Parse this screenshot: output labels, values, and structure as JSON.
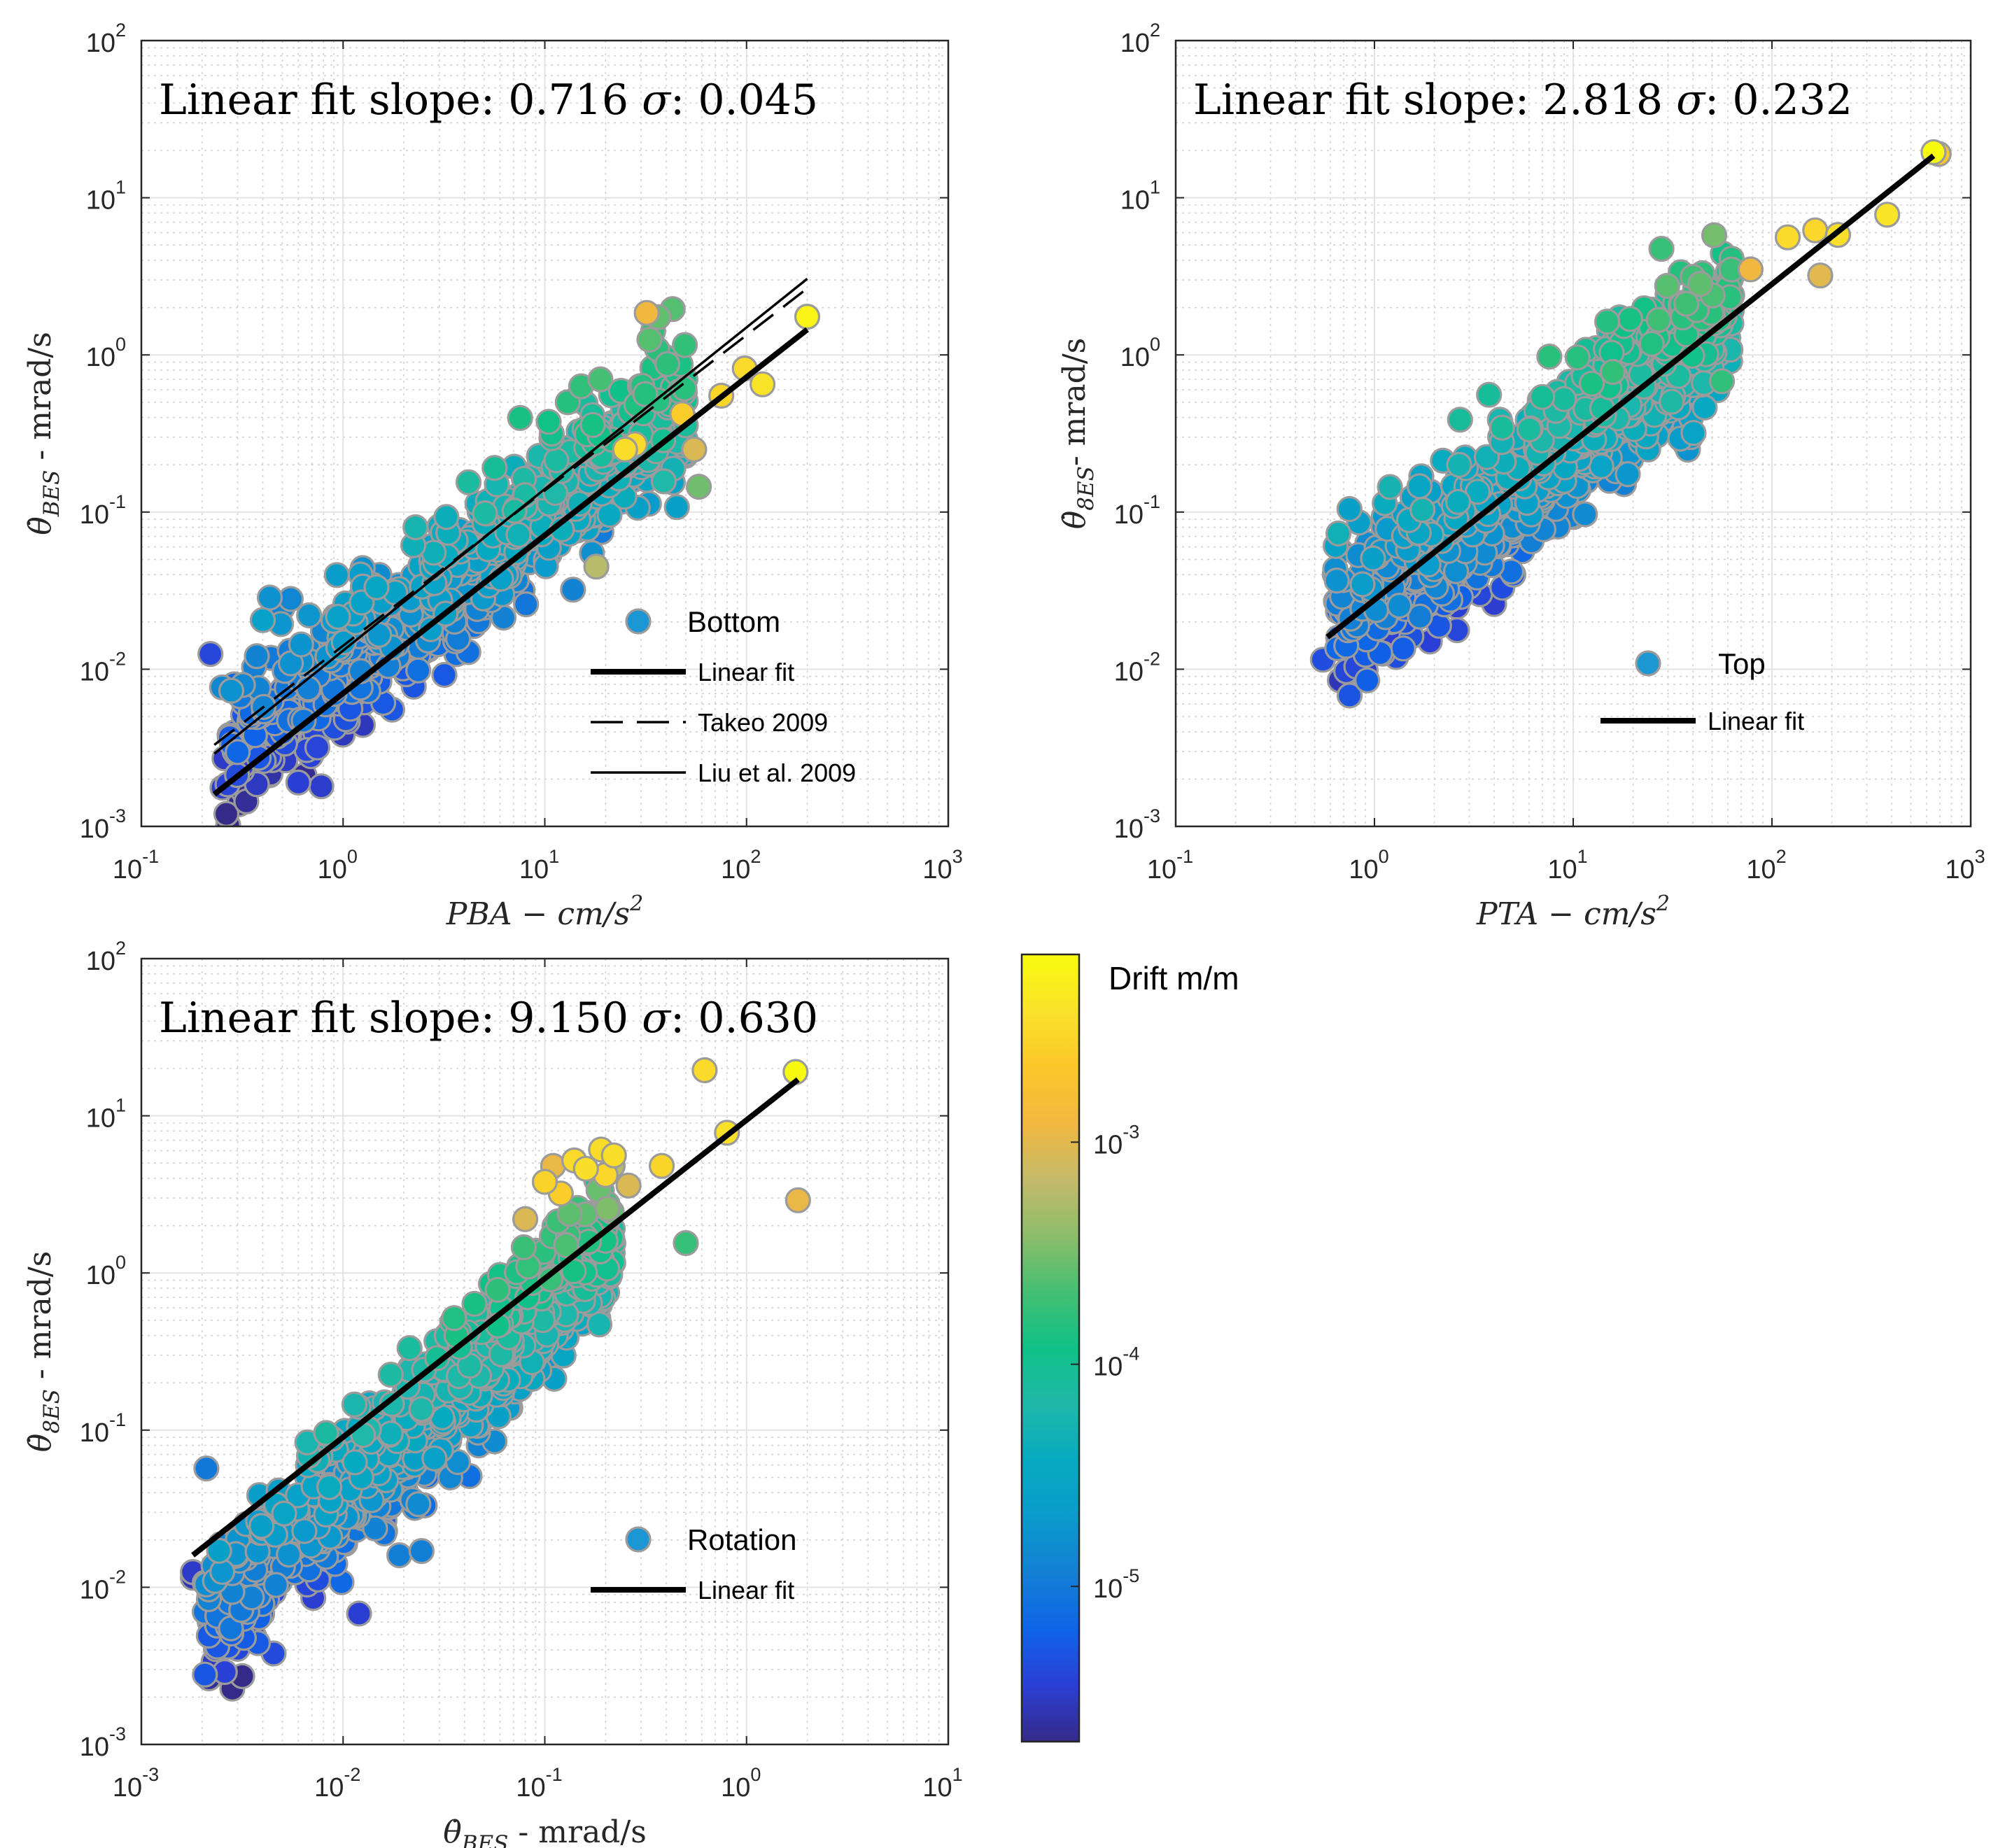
{
  "chart_data": [
    {
      "type": "scatter",
      "id": "bottom",
      "title": "Linear fit slope: 0.716 σ: 0.045",
      "xlabel": "PBA − cm/s²",
      "ylabel": "θ̇_BES - mrad/s",
      "xscale": "log",
      "yscale": "log",
      "xlim": [
        0.1,
        1000
      ],
      "ylim": [
        0.001,
        100
      ],
      "xticks": [
        {
          "v": 0.1,
          "e": "-1"
        },
        {
          "v": 1,
          "e": "0"
        },
        {
          "v": 10,
          "e": "1"
        },
        {
          "v": 100,
          "e": "2"
        },
        {
          "v": 1000,
          "e": "3"
        }
      ],
      "yticks": [
        {
          "v": 0.001,
          "e": "-3"
        },
        {
          "v": 0.01,
          "e": "-2"
        },
        {
          "v": 0.1,
          "e": "-1"
        },
        {
          "v": 1,
          "e": "0"
        },
        {
          "v": 10,
          "e": "1"
        },
        {
          "v": 100,
          "e": "2"
        }
      ],
      "tick_base": "10",
      "grid": true,
      "legend_position": "lower-right",
      "legend": {
        "marker_label": "Bottom",
        "lines": [
          {
            "label": "Linear fit",
            "style": "solid-thick"
          },
          {
            "label": "Takeo 2009",
            "style": "dashed"
          },
          {
            "label": "Liu et al. 2009",
            "style": "solid-thin"
          }
        ]
      },
      "lines": [
        {
          "name": "Linear fit",
          "style": "solid-thick",
          "x": [
            0.23,
            200
          ],
          "y": [
            0.0016,
            1.45
          ]
        },
        {
          "name": "Takeo 2009",
          "style": "dashed",
          "x": [
            0.23,
            200
          ],
          "y": [
            0.0033,
            2.65
          ]
        },
        {
          "name": "Liu et al. 2009",
          "style": "solid-thin",
          "x": [
            0.23,
            200
          ],
          "y": [
            0.0029,
            3.05
          ]
        }
      ],
      "cloud": {
        "xmin_log": -0.6,
        "xmax_log": 1.7,
        "slope": 0.98,
        "intercept": -1.97,
        "spread": 0.22,
        "count": 900,
        "seed": 11,
        "drift_center": -4.75,
        "drift_per_decade": 0.55
      },
      "points": [
        {
          "x": 0.22,
          "y": 0.0125,
          "drift": 4e-06
        },
        {
          "x": 0.55,
          "y": 0.028,
          "drift": 1.3e-05
        },
        {
          "x": 0.5,
          "y": 0.0245,
          "drift": 1.2e-05
        },
        {
          "x": 1.25,
          "y": 0.044,
          "drift": 1.6e-05
        },
        {
          "x": 0.6,
          "y": 0.0019,
          "drift": 3.5e-06
        },
        {
          "x": 0.78,
          "y": 0.0018,
          "drift": 3.3e-06
        },
        {
          "x": 13,
          "y": 0.5,
          "drift": 0.00015
        },
        {
          "x": 32,
          "y": 1.85,
          "drift": 0.0012
        },
        {
          "x": 18,
          "y": 0.045,
          "drift": 0.0006
        },
        {
          "x": 55,
          "y": 0.25,
          "drift": 0.0009
        },
        {
          "x": 48,
          "y": 0.42,
          "drift": 0.0025
        },
        {
          "x": 75,
          "y": 0.55,
          "drift": 0.003
        },
        {
          "x": 98,
          "y": 0.82,
          "drift": 0.0033
        },
        {
          "x": 120,
          "y": 0.65,
          "drift": 0.004
        },
        {
          "x": 200,
          "y": 1.75,
          "drift": 0.006
        },
        {
          "x": 58,
          "y": 0.145,
          "drift": 0.0003
        },
        {
          "x": 25,
          "y": 0.25,
          "drift": 0.0035
        },
        {
          "x": 28,
          "y": 0.27,
          "drift": 0.0032
        }
      ]
    },
    {
      "type": "scatter",
      "id": "top",
      "title": "Linear fit slope: 2.818 σ: 0.232",
      "xlabel": "PTA − cm/s²",
      "ylabel": "θ̇_8ES- mrad/s",
      "xscale": "log",
      "yscale": "log",
      "xlim": [
        0.1,
        1000
      ],
      "ylim": [
        0.001,
        100
      ],
      "xticks": [
        {
          "v": 0.1,
          "e": "-1"
        },
        {
          "v": 1,
          "e": "0"
        },
        {
          "v": 10,
          "e": "1"
        },
        {
          "v": 100,
          "e": "2"
        },
        {
          "v": 1000,
          "e": "3"
        }
      ],
      "yticks": [
        {
          "v": 0.001,
          "e": "-3"
        },
        {
          "v": 0.01,
          "e": "-2"
        },
        {
          "v": 0.1,
          "e": "-1"
        },
        {
          "v": 1,
          "e": "0"
        },
        {
          "v": 10,
          "e": "1"
        },
        {
          "v": 100,
          "e": "2"
        }
      ],
      "tick_base": "10",
      "grid": true,
      "legend_position": "lower-center",
      "legend": {
        "marker_label": "Top",
        "lines": [
          {
            "label": "Linear fit",
            "style": "solid-thick"
          }
        ]
      },
      "lines": [
        {
          "name": "Linear fit",
          "style": "solid-thick",
          "x": [
            0.58,
            650
          ],
          "y": [
            0.016,
            18.5
          ]
        }
      ],
      "cloud": {
        "xmin_log": -0.2,
        "xmax_log": 1.8,
        "slope": 1.0,
        "intercept": -1.52,
        "spread": 0.22,
        "count": 1100,
        "seed": 23,
        "drift_center": -4.6,
        "drift_per_decade": 0.55
      },
      "points": [
        {
          "x": 0.55,
          "y": 0.0115,
          "drift": 4.5e-06
        },
        {
          "x": 0.75,
          "y": 0.0068,
          "drift": 5e-06
        },
        {
          "x": 0.92,
          "y": 0.0085,
          "drift": 6e-06
        },
        {
          "x": 56,
          "y": 0.68,
          "drift": 0.00017
        },
        {
          "x": 78,
          "y": 3.5,
          "drift": 0.0012
        },
        {
          "x": 120,
          "y": 5.6,
          "drift": 0.0033
        },
        {
          "x": 165,
          "y": 6.2,
          "drift": 0.0031
        },
        {
          "x": 175,
          "y": 3.2,
          "drift": 0.001
        },
        {
          "x": 215,
          "y": 5.8,
          "drift": 0.0036
        },
        {
          "x": 380,
          "y": 7.8,
          "drift": 0.0041
        },
        {
          "x": 650,
          "y": 19.5,
          "drift": 0.007
        },
        {
          "x": 690,
          "y": 19.0,
          "drift": 0.0022
        },
        {
          "x": 2.6,
          "y": 0.025,
          "drift": 3.5e-06
        },
        {
          "x": 3.4,
          "y": 0.03,
          "drift": 4e-06
        },
        {
          "x": 4.0,
          "y": 0.026,
          "drift": 3.4e-06
        },
        {
          "x": 4.4,
          "y": 0.033,
          "drift": 4.5e-06
        },
        {
          "x": 5.0,
          "y": 0.04,
          "drift": 5.5e-06
        },
        {
          "x": 7.5,
          "y": 0.08,
          "drift": 8e-06
        },
        {
          "x": 1.9,
          "y": 0.015,
          "drift": 3.6e-06
        }
      ]
    },
    {
      "type": "scatter",
      "id": "rotation",
      "title": "Linear fit slope: 9.150 σ: 0.630",
      "xlabel": "θ̇_BES - mrad/s",
      "ylabel": "θ̇_8ES - mrad/s",
      "xscale": "log",
      "yscale": "log",
      "xlim": [
        0.001,
        10
      ],
      "ylim": [
        0.001,
        100
      ],
      "xticks": [
        {
          "v": 0.001,
          "e": "-3"
        },
        {
          "v": 0.01,
          "e": "-2"
        },
        {
          "v": 0.1,
          "e": "-1"
        },
        {
          "v": 1,
          "e": "0"
        },
        {
          "v": 10,
          "e": "1"
        }
      ],
      "yticks": [
        {
          "v": 0.001,
          "e": "-3"
        },
        {
          "v": 0.01,
          "e": "-2"
        },
        {
          "v": 0.1,
          "e": "-1"
        },
        {
          "v": 1,
          "e": "0"
        },
        {
          "v": 10,
          "e": "1"
        },
        {
          "v": 100,
          "e": "2"
        }
      ],
      "tick_base": "10",
      "grid": true,
      "legend_position": "lower-right",
      "legend": {
        "marker_label": "Rotation",
        "lines": [
          {
            "label": "Linear fit",
            "style": "solid-thick"
          }
        ]
      },
      "lines": [
        {
          "name": "Linear fit",
          "style": "solid-thick",
          "x": [
            0.0018,
            1.8
          ],
          "y": [
            0.016,
            17
          ]
        }
      ],
      "cloud": {
        "xmin_log": -2.7,
        "xmax_log": -0.65,
        "slope": 1.2,
        "intercept": 1.0,
        "spread": 0.22,
        "count": 1000,
        "seed": 37,
        "drift_center": -4.6,
        "drift_per_decade": 0.55
      },
      "points": [
        {
          "x": 0.0018,
          "y": 0.0115,
          "drift": 2.8e-06
        },
        {
          "x": 0.0018,
          "y": 0.0125,
          "drift": 3.2e-06
        },
        {
          "x": 0.0021,
          "y": 0.057,
          "drift": 1e-05
        },
        {
          "x": 0.0025,
          "y": 0.0085,
          "drift": 3.5e-06
        },
        {
          "x": 0.0027,
          "y": 0.0095,
          "drift": 5e-06
        },
        {
          "x": 0.0075,
          "y": 0.0112,
          "drift": 4.5e-06
        },
        {
          "x": 0.012,
          "y": 0.0068,
          "drift": 3.5e-06
        },
        {
          "x": 0.016,
          "y": 0.022,
          "drift": 9e-06
        },
        {
          "x": 0.019,
          "y": 0.016,
          "drift": 1.1e-05
        },
        {
          "x": 0.022,
          "y": 0.036,
          "drift": 1.2e-05
        },
        {
          "x": 0.0245,
          "y": 0.017,
          "drift": 1.1e-05
        },
        {
          "x": 0.034,
          "y": 0.05,
          "drift": 1.3e-05
        },
        {
          "x": 0.047,
          "y": 0.08,
          "drift": 1.2e-05
        },
        {
          "x": 0.019,
          "y": 0.1,
          "drift": 9e-06
        },
        {
          "x": 0.62,
          "y": 19.5,
          "drift": 0.0033
        },
        {
          "x": 1.75,
          "y": 19.0,
          "drift": 0.007
        },
        {
          "x": 1.8,
          "y": 2.9,
          "drift": 0.0011
        },
        {
          "x": 0.8,
          "y": 7.8,
          "drift": 0.0038
        },
        {
          "x": 0.5,
          "y": 1.55,
          "drift": 0.00018
        },
        {
          "x": 0.38,
          "y": 4.8,
          "drift": 0.003
        },
        {
          "x": 0.1,
          "y": 3.8,
          "drift": 0.0028
        },
        {
          "x": 0.11,
          "y": 4.8,
          "drift": 0.0011
        },
        {
          "x": 0.14,
          "y": 5.2,
          "drift": 0.0033
        },
        {
          "x": 0.16,
          "y": 4.6,
          "drift": 0.0036
        },
        {
          "x": 0.19,
          "y": 6.1,
          "drift": 0.0034
        },
        {
          "x": 0.22,
          "y": 5.6,
          "drift": 0.0037
        },
        {
          "x": 0.26,
          "y": 3.6,
          "drift": 0.0009
        },
        {
          "x": 0.12,
          "y": 3.2,
          "drift": 0.0025
        },
        {
          "x": 0.2,
          "y": 4.2,
          "drift": 0.0031
        },
        {
          "x": 0.08,
          "y": 2.2,
          "drift": 0.0009
        }
      ]
    }
  ],
  "colorbar": {
    "label": "Drift m/m",
    "scale": "log",
    "min": 2e-06,
    "max": 0.007,
    "ticks": [
      {
        "v": 1e-05,
        "e": "-5"
      },
      {
        "v": 0.0001,
        "e": "-4"
      },
      {
        "v": 0.001,
        "e": "-3"
      }
    ],
    "tick_base": "10",
    "colormap_stops": [
      "#352a87",
      "#2b3fd6",
      "#0f64e8",
      "#1380d4",
      "#0a9bcc",
      "#06aac0",
      "#1fb8a9",
      "#0fc187",
      "#45bf72",
      "#8dbd6a",
      "#c4ba6a",
      "#f2b83f",
      "#fbc72a",
      "#f9e22a",
      "#f9fb0e"
    ]
  },
  "style": {
    "axis_color": "#262626",
    "grid_color": "#e3e3e3",
    "minor_grid_color": "#d2d2d2",
    "marker_edge": "#9b9b9b",
    "line_color": "#000000"
  }
}
